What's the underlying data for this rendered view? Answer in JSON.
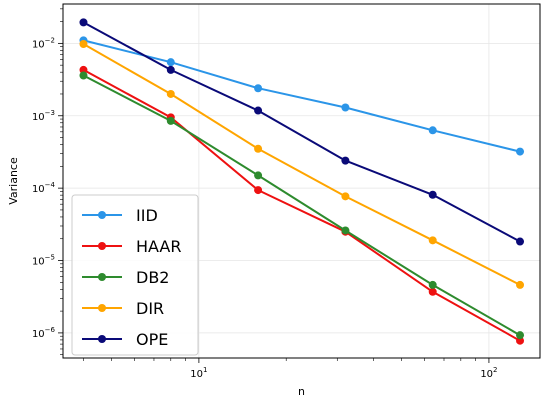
{
  "chart_data": {
    "type": "line",
    "xlabel": "n",
    "ylabel": "Variance",
    "x_scale": "log",
    "y_scale": "log",
    "xlim": [
      3.4,
      150
    ],
    "ylim": [
      4.5e-07,
      0.035
    ],
    "grid": true,
    "legend_position": "lower-left",
    "x": [
      4,
      8,
      16,
      32,
      64,
      128
    ],
    "x_ticks": [
      {
        "value": 10,
        "base": "10",
        "exp": "1"
      },
      {
        "value": 100,
        "base": "10",
        "exp": "2"
      }
    ],
    "y_ticks": [
      {
        "value": 1e-06,
        "base": "10",
        "exp": "−6"
      },
      {
        "value": 1e-05,
        "base": "10",
        "exp": "−5"
      },
      {
        "value": 0.0001,
        "base": "10",
        "exp": "−4"
      },
      {
        "value": 0.001,
        "base": "10",
        "exp": "−3"
      },
      {
        "value": 0.01,
        "base": "10",
        "exp": "−2"
      }
    ],
    "series": [
      {
        "name": "IID",
        "color": "#2b95e8",
        "values": [
          0.011,
          0.0055,
          0.0024,
          0.0013,
          0.00063,
          0.00032
        ]
      },
      {
        "name": "HAAR",
        "color": "#ee1111",
        "values": [
          0.0043,
          0.00095,
          9.4e-05,
          2.5e-05,
          3.7e-06,
          7.8e-07
        ]
      },
      {
        "name": "DB2",
        "color": "#2e8b2e",
        "values": [
          0.0036,
          0.00085,
          0.00015,
          2.6e-05,
          4.6e-06,
          9.3e-07
        ]
      },
      {
        "name": "DIR",
        "color": "#ffa500",
        "values": [
          0.0098,
          0.002,
          0.00035,
          7.7e-05,
          1.9e-05,
          4.6e-06
        ]
      },
      {
        "name": "OPE",
        "color": "#0a0a78",
        "values": [
          0.0195,
          0.0043,
          0.00118,
          0.00024,
          8.1e-05,
          1.83e-05
        ]
      }
    ]
  }
}
